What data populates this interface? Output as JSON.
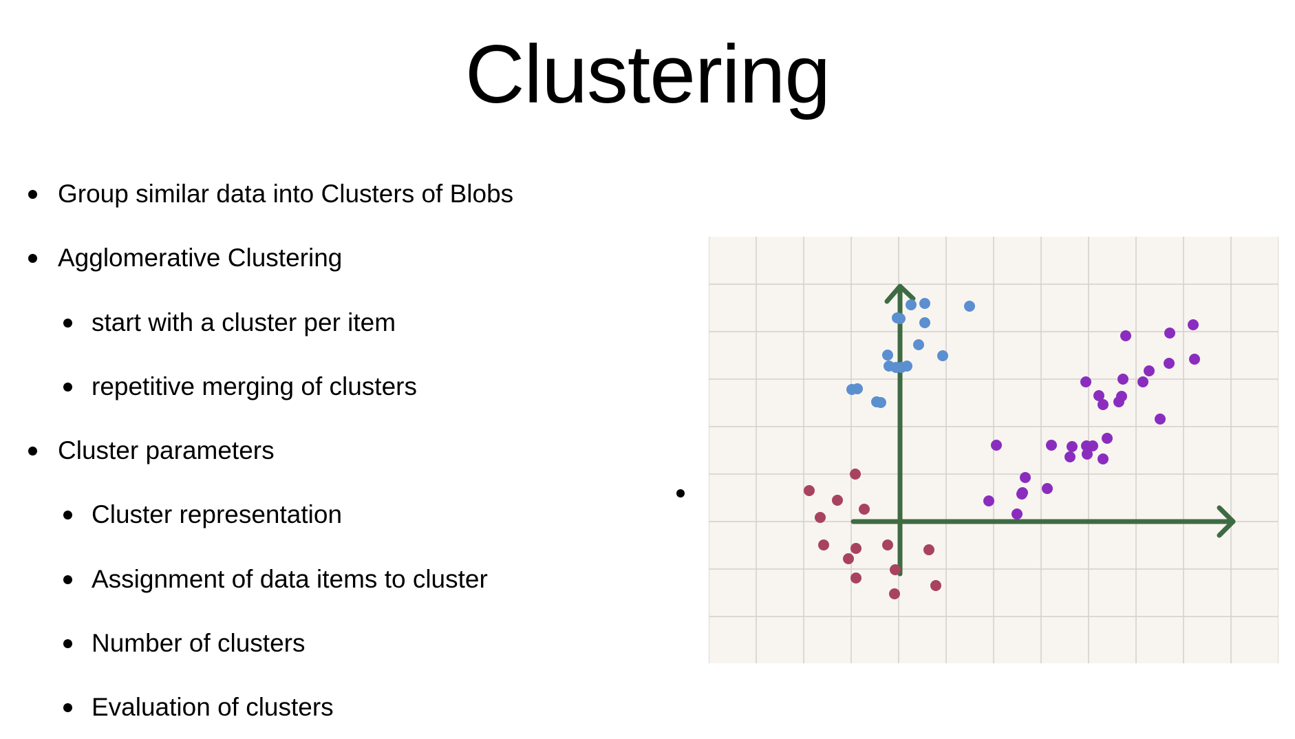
{
  "slide": {
    "title": "Clustering",
    "bullets": [
      {
        "level": 1,
        "text": "Group similar data into Clusters of Blobs"
      },
      {
        "level": 1,
        "text": "Agglomerative Clustering"
      },
      {
        "level": 2,
        "text": "start with a cluster per item"
      },
      {
        "level": 2,
        "text": "repetitive merging of clusters"
      },
      {
        "level": 1,
        "text": "Cluster parameters"
      },
      {
        "level": 2,
        "text": "Cluster representation"
      },
      {
        "level": 2,
        "text": "Assignment of data items to cluster"
      },
      {
        "level": 2,
        "text": "Number of clusters"
      },
      {
        "level": 2,
        "text": "Evaluation of clusters"
      }
    ]
  },
  "figure": {
    "paper_color": "#f8f5f0",
    "grid_color": "#d3cfca",
    "axis_color": "#3f6b43",
    "cluster_colors": {
      "blue": "#5b8fd0",
      "purple": "#8a2dbf",
      "red": "#a8435f"
    }
  }
}
